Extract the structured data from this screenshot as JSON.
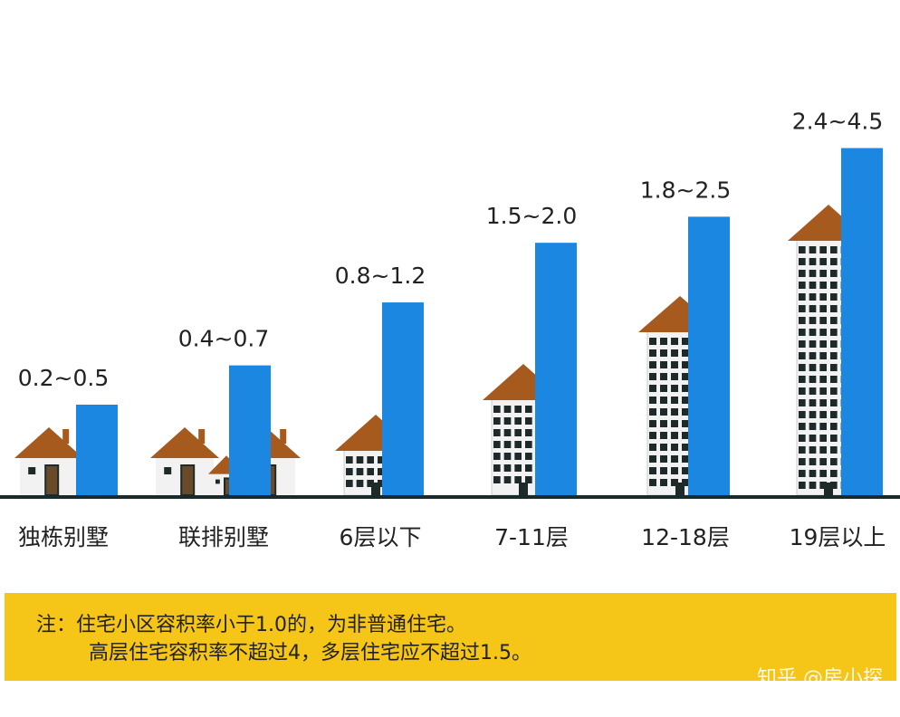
{
  "chart_data": {
    "type": "bar",
    "categories": [
      "独栋别墅",
      "联排别墅",
      "6层以下",
      "7-11层",
      "12-18层",
      "19层以上"
    ],
    "values": [
      [
        0.2,
        0.5
      ],
      [
        0.4,
        0.7
      ],
      [
        0.8,
        1.2
      ],
      [
        1.5,
        2.0
      ],
      [
        1.8,
        2.5
      ],
      [
        2.4,
        4.5
      ]
    ],
    "value_labels": [
      "0.2~0.5",
      "0.4~0.7",
      "0.8~1.2",
      "1.5~2.0",
      "1.8~2.5",
      "2.4~4.5"
    ],
    "color": "#1b87e0"
  },
  "note": {
    "lines": [
      "注：住宅小区容积率小于1.0的，为非普通住宅。",
      "高层住宅容积率不超过4，多层住宅应不超过1.5。"
    ]
  },
  "watermark": "知乎 @房小探"
}
